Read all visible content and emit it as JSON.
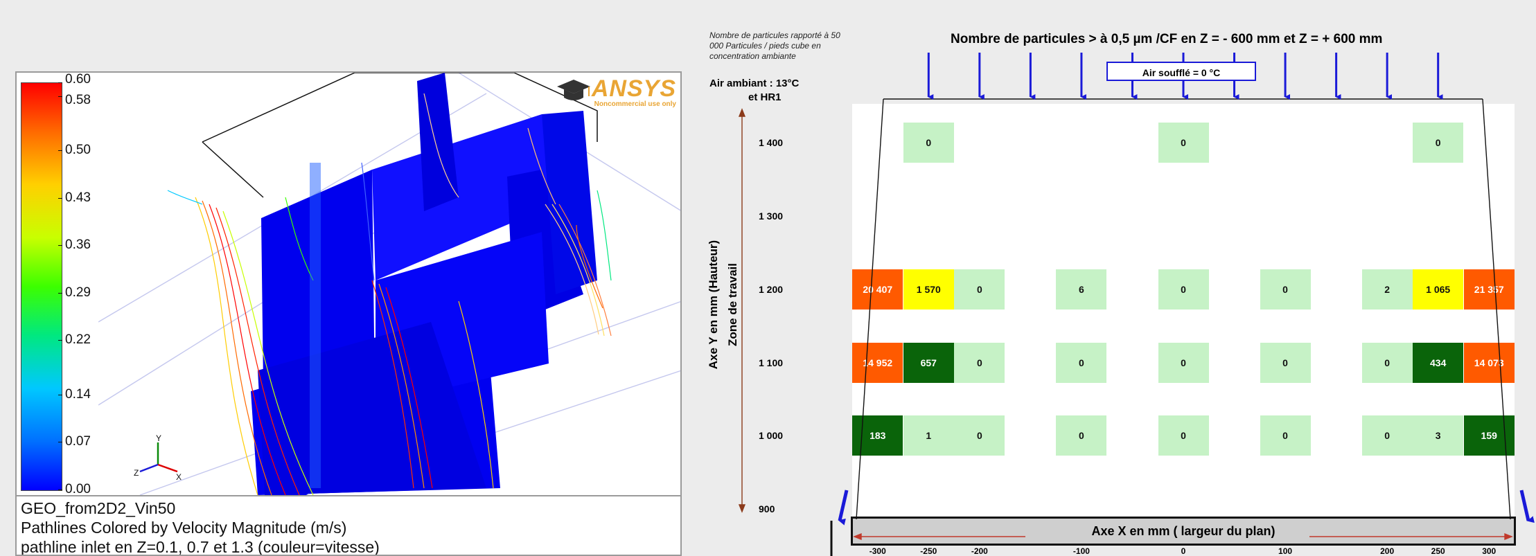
{
  "ansys": {
    "logo": "ANSYS",
    "logo_sub": "Noncommercial use only",
    "colorbar": {
      "ticks": [
        "0.60",
        "0.58",
        "0.50",
        "0.43",
        "0.36",
        "0.29",
        "0.22",
        "0.14",
        "0.07",
        "0.00"
      ],
      "tick_values": [
        0.6,
        0.58,
        0.5,
        0.43,
        0.36,
        0.29,
        0.22,
        0.14,
        0.07,
        0.0
      ],
      "range": [
        0.0,
        0.6
      ]
    },
    "caption": {
      "line1": "GEO_from2D2_Vin50",
      "line2": "Pathlines Colored by Velocity Magnitude (m/s)",
      "line3": "pathline inlet en Z=0.1, 0.7 et 1.3 (couleur=vitesse)"
    },
    "triad": {
      "x": "X",
      "y": "Y",
      "z": "Z"
    }
  },
  "diagram": {
    "note": "Nombre de particules rapporté à 50 000 Particules / pieds cube en concentration ambiante",
    "air_ambiant": "Air ambiant :   13°C",
    "air_hr": "et HR1",
    "title": "Nombre de particules > à 0,5 µm /CF  en Z = - 600 mm et Z = + 600 mm",
    "air_souffle": "Air soufflé = 0 °C",
    "y_axis_label": "Axe Y  en mm (Hauteur)",
    "zone_label": "Zone de travail",
    "x_axis_label": "Axe X  en mm  ( largeur du plan)"
  },
  "chart_data": {
    "type": "heatmap",
    "title": "Nombre de particules > à 0,5 µm /CF  en Z = - 600 mm et Z = + 600 mm",
    "xlabel": "Axe X  en mm  ( largeur du plan)",
    "ylabel": "Axe Y  en mm (Hauteur)",
    "x_ticks": [
      "-300",
      "-250",
      "-200",
      "-100",
      "0",
      "100",
      "200",
      "250",
      "300"
    ],
    "x_tick_values": [
      -300,
      -250,
      -200,
      -100,
      0,
      100,
      200,
      250,
      300
    ],
    "y_ticks": [
      "1 400",
      "1 300",
      "1 200",
      "1 100",
      "1 000",
      "900"
    ],
    "y_tick_values": [
      1400,
      1300,
      1200,
      1100,
      1000,
      900
    ],
    "xlim": [
      -325,
      325
    ],
    "ylim": [
      900,
      1425
    ],
    "cell_x_values": [
      -300,
      -250,
      -200,
      -100,
      0,
      100,
      200,
      250,
      300
    ],
    "rows": [
      {
        "y": 1400,
        "cells": [
          null,
          "0",
          null,
          null,
          "0",
          null,
          null,
          "0",
          null
        ],
        "colors": [
          null,
          "lg",
          null,
          null,
          "lg",
          null,
          null,
          "lg",
          null
        ]
      },
      {
        "y": 1200,
        "cells": [
          "20 407",
          "1 570",
          "0",
          "6",
          "0",
          "0",
          "2",
          "1 065",
          "21 357"
        ],
        "colors": [
          "or",
          "ye",
          "lg",
          "lg",
          "lg",
          "lg",
          "lg",
          "ye",
          "or"
        ]
      },
      {
        "y": 1100,
        "cells": [
          "14 952",
          "657",
          "0",
          "0",
          "0",
          "0",
          "0",
          "434",
          "14 073"
        ],
        "colors": [
          "or",
          "dg",
          "lg",
          "lg",
          "lg",
          "lg",
          "lg",
          "dg",
          "or"
        ]
      },
      {
        "y": 1000,
        "cells": [
          "183",
          "1",
          "0",
          "0",
          "0",
          "0",
          "0",
          "3",
          "159"
        ],
        "colors": [
          "dg",
          "lg",
          "lg",
          "lg",
          "lg",
          "lg",
          "lg",
          "lg",
          "dg"
        ]
      }
    ],
    "inlet_arrows_x": [
      -250,
      -200,
      -150,
      -100,
      -50,
      0,
      50,
      100,
      150,
      200,
      250
    ]
  }
}
